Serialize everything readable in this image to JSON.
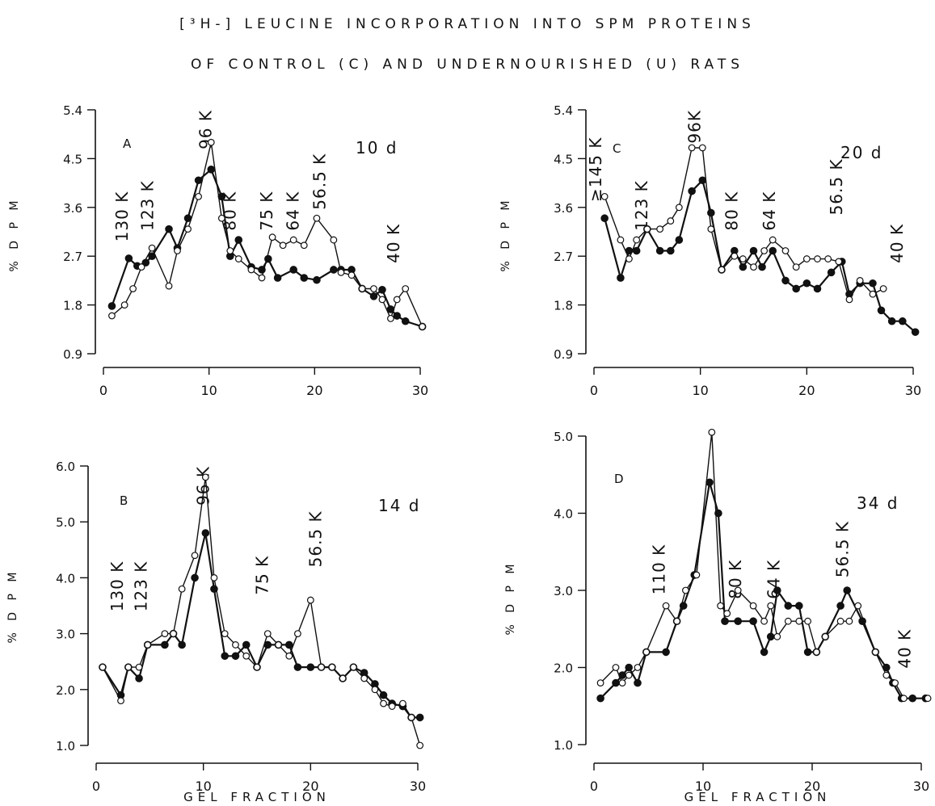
{
  "figure": {
    "title_line1": "[³H-] LEUCINE INCORPORATION INTO SPM PROTEINS",
    "title_line2": "OF CONTROL (C) AND UNDERNOURISHED (U) RATS"
  },
  "colors": {
    "ink": "#111111",
    "open_marker_fill": "#ffffff"
  },
  "chart_data": [
    {
      "type": "line",
      "panel": "A",
      "age_label": "10 d",
      "ylabel": "% D P M",
      "xlabel": "",
      "xlim": [
        0,
        30
      ],
      "ylim": [
        0.9,
        5.4
      ],
      "xticks": [
        0,
        10,
        20,
        30
      ],
      "yticks": [
        0.9,
        1.8,
        2.7,
        3.6,
        4.5,
        5.4
      ],
      "ytick_labels": [
        "0.9",
        "1.8",
        "2.7",
        "3.6",
        "4.5",
        "5.4"
      ],
      "annotations": [
        {
          "text": "130 K",
          "x": 2.3,
          "y": 3.9
        },
        {
          "text": "123 K",
          "x": 4.7,
          "y": 4.1
        },
        {
          "text": "96 K",
          "x": 10.2,
          "y": 5.4
        },
        {
          "text": "80 K",
          "x": 12.5,
          "y": 3.9
        },
        {
          "text": "75 K",
          "x": 16.0,
          "y": 3.9
        },
        {
          "text": "64 K",
          "x": 18.5,
          "y": 3.9
        },
        {
          "text": "56.5 K",
          "x": 21.0,
          "y": 4.6
        },
        {
          "text": "40 K",
          "x": 28.0,
          "y": 3.3
        }
      ],
      "series": [
        {
          "marker": "filled",
          "x": [
            0.8,
            2.4,
            3.2,
            4.0,
            4.6,
            6.2,
            7.0,
            8.0,
            9.0,
            10.2,
            11.2,
            12.0,
            12.8,
            14.0,
            15.0,
            15.6,
            16.5,
            18.0,
            19.0,
            20.2,
            21.8,
            22.5,
            23.5,
            24.5,
            25.6,
            26.4,
            27.2,
            27.8,
            28.6,
            30.2
          ],
          "values": [
            1.78,
            2.66,
            2.52,
            2.58,
            2.7,
            3.2,
            2.85,
            3.4,
            4.1,
            4.3,
            3.8,
            2.7,
            3.0,
            2.5,
            2.45,
            2.65,
            2.3,
            2.45,
            2.3,
            2.26,
            2.45,
            2.45,
            2.45,
            2.1,
            1.96,
            2.08,
            1.72,
            1.6,
            1.5,
            1.4
          ]
        },
        {
          "marker": "open",
          "x": [
            0.8,
            2.0,
            2.8,
            3.6,
            4.6,
            6.2,
            7.0,
            8.0,
            9.0,
            10.2,
            11.2,
            12.0,
            12.8,
            14.0,
            15.0,
            16.0,
            17.0,
            18.0,
            19.0,
            20.2,
            21.8,
            22.5,
            23.5,
            24.5,
            25.6,
            26.4,
            27.2,
            27.8,
            28.6,
            30.2
          ],
          "values": [
            1.6,
            1.8,
            2.1,
            2.5,
            2.85,
            2.15,
            2.8,
            3.2,
            3.8,
            4.8,
            3.4,
            2.8,
            2.65,
            2.45,
            2.3,
            3.05,
            2.9,
            3.0,
            2.9,
            3.4,
            3.0,
            2.4,
            2.35,
            2.1,
            2.1,
            1.9,
            1.55,
            1.9,
            2.1,
            1.4
          ]
        }
      ]
    },
    {
      "type": "line",
      "panel": "C",
      "age_label": "20 d",
      "ylabel": "% D P M",
      "xlabel": "",
      "xlim": [
        0,
        30
      ],
      "ylim": [
        0.9,
        5.4
      ],
      "xticks": [
        0,
        10,
        20,
        30
      ],
      "yticks": [
        0.9,
        1.8,
        2.7,
        3.6,
        4.5,
        5.4
      ],
      "ytick_labels": [
        "0.9",
        "1.8",
        "2.7",
        "3.6",
        "4.5",
        "5.4"
      ],
      "annotations": [
        {
          "text": "≥145 K",
          "x": 0.7,
          "y": 4.9
        },
        {
          "text": "123 K",
          "x": 5.0,
          "y": 4.1
        },
        {
          "text": "96K",
          "x": 10.0,
          "y": 5.4
        },
        {
          "text": "80 K",
          "x": 13.5,
          "y": 3.9
        },
        {
          "text": "64 K",
          "x": 17.0,
          "y": 3.9
        },
        {
          "text": "56.5 K",
          "x": 23.3,
          "y": 4.5
        },
        {
          "text": "40 K",
          "x": 29.0,
          "y": 3.3
        }
      ],
      "series": [
        {
          "marker": "filled",
          "x": [
            1.0,
            2.5,
            3.3,
            4.0,
            5.0,
            6.2,
            7.2,
            8.0,
            9.2,
            10.2,
            11.0,
            12.0,
            13.2,
            14.0,
            15.0,
            15.8,
            16.8,
            18.0,
            19.0,
            20.0,
            21.0,
            22.3,
            23.3,
            24.0,
            25.0,
            26.2,
            27.0,
            28.0,
            29.0,
            30.2
          ],
          "values": [
            3.4,
            2.3,
            2.8,
            2.8,
            3.2,
            2.8,
            2.8,
            3.0,
            3.9,
            4.1,
            3.5,
            2.45,
            2.8,
            2.5,
            2.8,
            2.5,
            2.8,
            2.25,
            2.1,
            2.2,
            2.1,
            2.4,
            2.6,
            2.0,
            2.2,
            2.2,
            1.7,
            1.5,
            1.5,
            1.3
          ]
        },
        {
          "marker": "open",
          "x": [
            1.0,
            2.5,
            3.3,
            4.0,
            5.0,
            6.2,
            7.2,
            8.0,
            9.2,
            10.2,
            11.0,
            12.0,
            13.2,
            14.0,
            15.0,
            16.0,
            16.8,
            18.0,
            19.0,
            20.0,
            21.0,
            22.0,
            23.0,
            24.0,
            25.0,
            26.2,
            27.2
          ],
          "values": [
            3.8,
            3.0,
            2.65,
            3.0,
            3.2,
            3.2,
            3.35,
            3.6,
            4.7,
            4.7,
            3.2,
            2.45,
            2.7,
            2.65,
            2.5,
            2.8,
            3.0,
            2.8,
            2.5,
            2.65,
            2.65,
            2.65,
            2.6,
            1.9,
            2.25,
            2.0,
            2.1
          ]
        }
      ]
    },
    {
      "type": "line",
      "panel": "B",
      "age_label": "14 d",
      "ylabel": "% D P M",
      "xlabel": "GEL FRACTION",
      "xlim": [
        0,
        30
      ],
      "ylim": [
        1.0,
        6.0
      ],
      "xticks": [
        0,
        10,
        20,
        30
      ],
      "yticks": [
        1.0,
        2.0,
        3.0,
        4.0,
        5.0,
        6.0
      ],
      "ytick_labels": [
        "1.0",
        "2.0",
        "3.0",
        "4.0",
        "5.0",
        "6.0"
      ],
      "annotations": [
        {
          "text": "130 K",
          "x": 2.5,
          "y": 4.3
        },
        {
          "text": "123 K",
          "x": 4.7,
          "y": 4.3
        },
        {
          "text": "96 K",
          "x": 10.5,
          "y": 6.0
        },
        {
          "text": "75 K",
          "x": 16.0,
          "y": 4.4
        },
        {
          "text": "56.5 K",
          "x": 21.0,
          "y": 5.2
        }
      ],
      "series": [
        {
          "marker": "filled",
          "x": [
            0.6,
            2.3,
            3.0,
            4.0,
            4.8,
            6.4,
            7.2,
            8.0,
            9.2,
            10.2,
            11.0,
            12.0,
            13.0,
            14.0,
            15.0,
            16.0,
            17.0,
            18.0,
            18.8,
            20.0,
            21.0,
            22.0,
            23.0,
            24.0,
            25.0,
            26.0,
            26.8,
            27.6,
            28.6,
            29.4,
            30.2
          ],
          "values": [
            2.4,
            1.9,
            2.4,
            2.2,
            2.8,
            2.8,
            3.0,
            2.8,
            4.0,
            4.8,
            3.8,
            2.6,
            2.6,
            2.8,
            2.4,
            2.8,
            2.8,
            2.8,
            2.4,
            2.4,
            2.4,
            2.4,
            2.2,
            2.4,
            2.3,
            2.1,
            1.9,
            1.75,
            1.7,
            1.5,
            1.5
          ]
        },
        {
          "marker": "open",
          "x": [
            0.6,
            2.3,
            3.0,
            4.0,
            4.8,
            6.4,
            7.2,
            8.0,
            9.2,
            10.2,
            11.0,
            12.0,
            13.0,
            14.0,
            15.0,
            16.0,
            17.0,
            18.0,
            18.8,
            20.0,
            21.0,
            22.0,
            23.0,
            24.0,
            25.0,
            26.0,
            26.8,
            27.6,
            28.6,
            29.4,
            30.2
          ],
          "values": [
            2.4,
            1.8,
            2.4,
            2.4,
            2.8,
            3.0,
            3.0,
            3.8,
            4.4,
            5.8,
            4.0,
            3.0,
            2.8,
            2.6,
            2.4,
            3.0,
            2.8,
            2.6,
            3.0,
            3.6,
            2.4,
            2.4,
            2.2,
            2.4,
            2.2,
            2.0,
            1.75,
            1.7,
            1.75,
            1.5,
            1.0
          ]
        }
      ]
    },
    {
      "type": "line",
      "panel": "D",
      "age_label": "34 d",
      "ylabel": "% D P M",
      "xlabel": "GEL FRACTION",
      "xlim": [
        0,
        30
      ],
      "ylim": [
        1.0,
        5.0
      ],
      "xticks": [
        0,
        10,
        20,
        30
      ],
      "yticks": [
        1.0,
        2.0,
        3.0,
        4.0,
        5.0
      ],
      "ytick_labels": [
        "1.0",
        "2.0",
        "3.0",
        "4.0",
        "5.0"
      ],
      "annotations": [
        {
          "text": "110 K",
          "x": 6.5,
          "y": 3.6
        },
        {
          "text": "80 K",
          "x": 13.5,
          "y": 3.4
        },
        {
          "text": "64 K",
          "x": 17.0,
          "y": 3.4
        },
        {
          "text": "56.5 K",
          "x": 23.3,
          "y": 3.9
        },
        {
          "text": "40 K",
          "x": 29.0,
          "y": 2.5
        }
      ],
      "series": [
        {
          "marker": "filled",
          "x": [
            0.6,
            2.0,
            2.6,
            3.2,
            4.0,
            4.8,
            6.6,
            7.6,
            8.2,
            9.2,
            10.6,
            11.4,
            12.0,
            13.2,
            14.6,
            15.6,
            16.2,
            16.8,
            17.8,
            18.8,
            19.6,
            20.4,
            21.2,
            22.6,
            23.2,
            24.6,
            25.8,
            26.8,
            27.4,
            28.2,
            29.2,
            30.4
          ],
          "values": [
            1.6,
            1.8,
            1.9,
            2.0,
            1.8,
            2.2,
            2.2,
            2.6,
            2.8,
            3.2,
            4.4,
            4.0,
            2.6,
            2.6,
            2.6,
            2.2,
            2.4,
            3.0,
            2.8,
            2.8,
            2.2,
            2.2,
            2.4,
            2.8,
            3.0,
            2.6,
            2.2,
            2.0,
            1.8,
            1.6,
            1.6,
            1.6
          ]
        },
        {
          "marker": "open",
          "x": [
            0.6,
            2.0,
            2.6,
            3.2,
            4.0,
            4.8,
            6.6,
            7.6,
            8.4,
            9.4,
            10.8,
            11.6,
            12.2,
            13.2,
            14.6,
            15.6,
            16.2,
            16.8,
            17.8,
            18.8,
            19.6,
            20.4,
            21.2,
            22.6,
            23.4,
            24.2,
            25.8,
            26.8,
            27.6,
            28.4,
            30.6
          ],
          "values": [
            1.8,
            2.0,
            1.8,
            1.9,
            2.0,
            2.2,
            2.8,
            2.6,
            3.0,
            3.2,
            5.05,
            2.8,
            2.7,
            3.0,
            2.8,
            2.6,
            2.8,
            2.4,
            2.6,
            2.6,
            2.6,
            2.2,
            2.4,
            2.6,
            2.6,
            2.8,
            2.2,
            1.9,
            1.8,
            1.6,
            1.6
          ]
        }
      ]
    }
  ]
}
